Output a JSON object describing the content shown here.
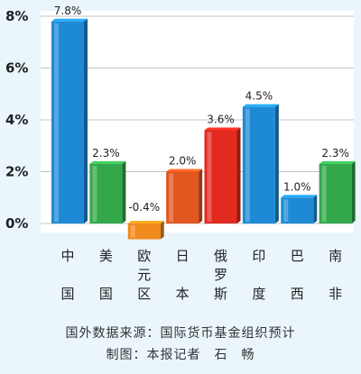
{
  "chart_data": {
    "type": "bar",
    "title": "",
    "xlabel": "",
    "ylabel": "",
    "ylim": [
      -1,
      8.5
    ],
    "yticks": [
      "0%",
      "2%",
      "4%",
      "6%",
      "8%"
    ],
    "ytick_values": [
      0,
      2,
      4,
      6,
      8
    ],
    "grid": true,
    "categories": [
      "中国",
      "美国",
      "欧元区",
      "日本",
      "俄罗斯",
      "印度",
      "巴西",
      "南非"
    ],
    "values": [
      7.8,
      2.3,
      -0.4,
      2.0,
      3.6,
      4.5,
      1.0,
      2.3
    ],
    "value_labels": [
      "7.8%",
      "2.3%",
      "-0.4%",
      "2.0%",
      "3.6%",
      "4.5%",
      "1.0%",
      "2.3%"
    ],
    "colors": [
      "#1e8ad6",
      "#32a84a",
      "#f08a1c",
      "#e2561f",
      "#e32a1f",
      "#1e8ad6",
      "#1e8ad6",
      "#32a84a"
    ]
  },
  "footer": {
    "source": "国外数据来源：国际货币基金组织预计",
    "credit": "制图：本报记者　石　畅"
  }
}
